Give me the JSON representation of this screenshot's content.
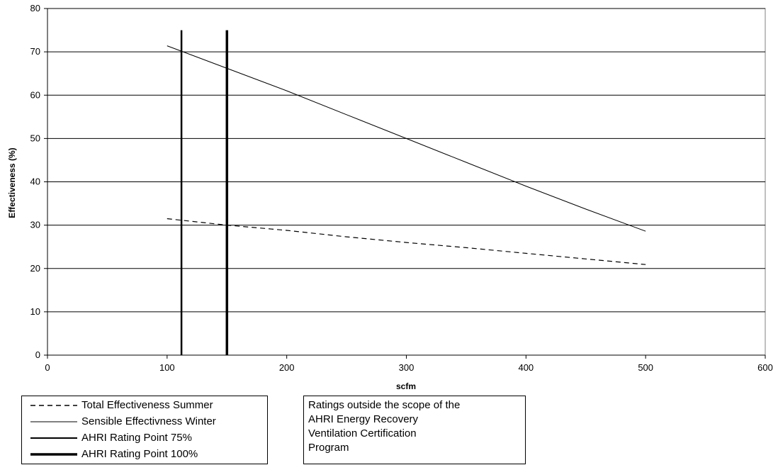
{
  "chart_data": {
    "type": "line",
    "xlabel": "scfm",
    "ylabel": "Effectiveness (%)",
    "xlim": [
      0,
      600
    ],
    "ylim": [
      0,
      80
    ],
    "xticks": [
      0,
      100,
      200,
      300,
      400,
      500,
      600
    ],
    "yticks": [
      0,
      10,
      20,
      30,
      40,
      50,
      60,
      70,
      80
    ],
    "grid": "horizontal",
    "legend_position": "bottom-left",
    "series": [
      {
        "name": "Total Effectiveness Summer",
        "style": "dashed",
        "color": "#000000",
        "points": [
          [
            100,
            31.5
          ],
          [
            150,
            30.0
          ],
          [
            200,
            28.8
          ],
          [
            250,
            27.3
          ],
          [
            300,
            26.0
          ],
          [
            350,
            24.8
          ],
          [
            400,
            23.5
          ],
          [
            450,
            22.2
          ],
          [
            500,
            20.9
          ]
        ]
      },
      {
        "name": "Sensible Effectivness Winter",
        "style": "solid-thin",
        "color": "#000000",
        "points": [
          [
            100,
            71.4
          ],
          [
            150,
            66.2
          ],
          [
            200,
            61.0
          ],
          [
            250,
            55.5
          ],
          [
            300,
            50.0
          ],
          [
            350,
            44.5
          ],
          [
            400,
            39.0
          ],
          [
            450,
            33.7
          ],
          [
            500,
            28.6
          ]
        ]
      },
      {
        "name": "AHRI Rating Point 75%",
        "style": "vertical",
        "color": "#000000",
        "points": [
          [
            112,
            0
          ],
          [
            112,
            75
          ]
        ]
      },
      {
        "name": "AHRI Rating Point 100%",
        "style": "vertical-thick",
        "color": "#000000",
        "points": [
          [
            150,
            0
          ],
          [
            150,
            75
          ]
        ]
      }
    ]
  },
  "note": {
    "lines": [
      "Ratings outside the scope of the",
      "AHRI Energy Recovery",
      "Ventilation Certification",
      "Program"
    ]
  }
}
